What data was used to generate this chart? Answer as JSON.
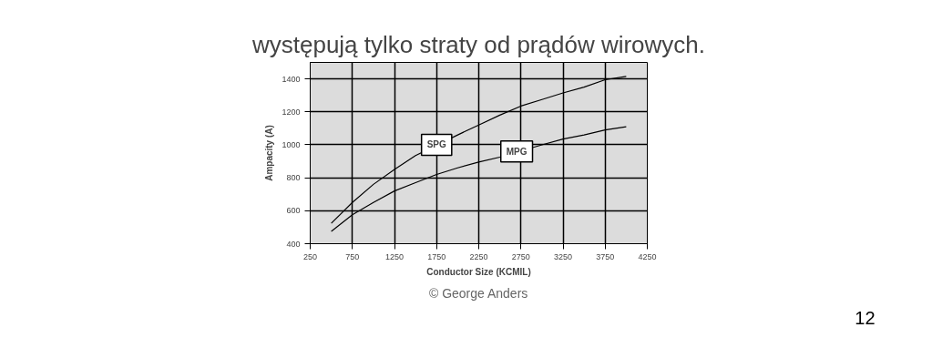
{
  "chart_data": {
    "type": "line",
    "title": "występują tylko straty od prądów wirowych.",
    "xlabel": "Conductor Size (KCMIL)",
    "ylabel": "Ampacity (A)",
    "x": [
      500,
      750,
      1000,
      1250,
      1500,
      2000,
      2250,
      2500,
      2750,
      3000,
      3250,
      3500,
      3750,
      4000
    ],
    "series": [
      {
        "name": "SPG",
        "color": "#000000",
        "values": [
          524,
          650,
          760,
          850,
          935,
          1060,
          1120,
          1180,
          1235,
          1275,
          1315,
          1350,
          1395,
          1415
        ]
      },
      {
        "name": "MPG",
        "color": "#000000",
        "x": [
          500,
          750,
          1000,
          1250,
          1500,
          1750,
          2000,
          2250,
          2500,
          3000,
          3250,
          3500,
          3750,
          4000
        ],
        "values": [
          475,
          575,
          650,
          720,
          770,
          820,
          860,
          895,
          925,
          1000,
          1035,
          1060,
          1090,
          1110
        ]
      }
    ],
    "xlim": [
      250,
      4250
    ],
    "ylim": [
      400,
      1500
    ],
    "xticks": [
      250,
      750,
      1250,
      1750,
      2250,
      2750,
      3250,
      3750,
      4250
    ],
    "yticks": [
      400,
      600,
      800,
      1000,
      1200,
      1400
    ],
    "grid": true,
    "marker": "none",
    "line_style": "solid",
    "annotations": [
      "© George Anders",
      "12"
    ]
  }
}
